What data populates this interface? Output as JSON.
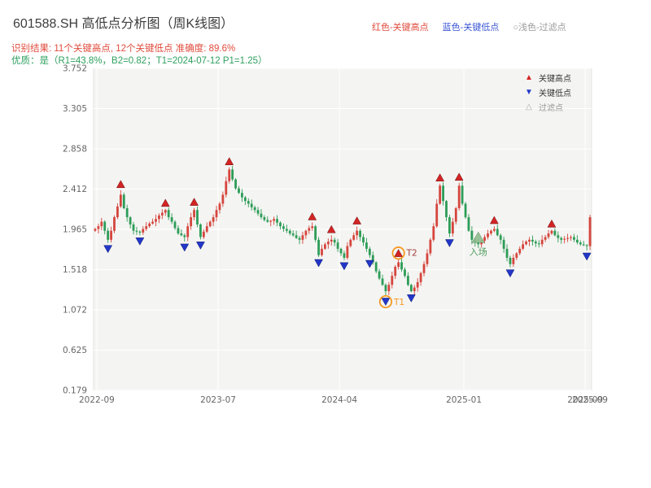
{
  "header": {
    "title": "601588.SH 高低点分析图（周K线图）",
    "result_line": "识别结果: 11个关键高点, 12个关键低点  准确度: 89.6%",
    "quality_line": "优质：是（R1=43.8%，B2=0.82；T1=2024-07-12 P1=1.25）",
    "legend": [
      {
        "label": "红色-关键高点",
        "color": "#e04b3c"
      },
      {
        "label": "蓝色-关键低点",
        "color": "#3a56d4"
      },
      {
        "label": "○浅色-过滤点",
        "color": "#9b9b9b"
      }
    ]
  },
  "chart_data": {
    "type": "candlestick",
    "title": "601588.SH 高低点分析图（周K线图）",
    "y_ticks": [
      "3.752",
      "3.305",
      "2.858",
      "2.412",
      "1.965",
      "1.518",
      "1.072",
      "0.625",
      "0.179"
    ],
    "axis": {
      "min": 0.179,
      "max": 3.752,
      "grid": true
    },
    "x_ticks": [
      {
        "label": "2022-09",
        "week": 1
      },
      {
        "label": "2023-07",
        "week": 39
      },
      {
        "label": "2024-04",
        "week": 77
      },
      {
        "label": "2025-01",
        "week": 116
      },
      {
        "label": "2025-09",
        "week": 154
      },
      {
        "label": "2025-09",
        "week": 155.5,
        "grid": false
      }
    ],
    "first_open": 1.95,
    "closes": [
      1.97,
      2.0,
      2.05,
      1.95,
      1.85,
      1.95,
      2.1,
      2.22,
      2.35,
      2.2,
      2.1,
      2.02,
      1.95,
      1.94,
      1.93,
      1.97,
      2.0,
      2.03,
      2.05,
      2.08,
      2.12,
      2.15,
      2.18,
      2.1,
      2.05,
      1.98,
      1.92,
      1.9,
      1.88,
      2.0,
      2.1,
      2.18,
      2.02,
      1.88,
      1.94,
      2.0,
      2.05,
      2.1,
      2.18,
      2.25,
      2.35,
      2.5,
      2.63,
      2.52,
      2.42,
      2.37,
      2.32,
      2.28,
      2.25,
      2.21,
      2.18,
      2.14,
      2.1,
      2.07,
      2.05,
      2.06,
      2.08,
      2.04,
      2.0,
      1.97,
      1.95,
      1.92,
      1.9,
      1.87,
      1.85,
      1.9,
      1.95,
      1.98,
      2.0,
      1.85,
      1.68,
      1.75,
      1.8,
      1.83,
      1.85,
      1.82,
      1.75,
      1.7,
      1.65,
      1.78,
      1.85,
      1.9,
      1.95,
      1.88,
      1.82,
      1.75,
      1.68,
      1.6,
      1.5,
      1.42,
      1.35,
      1.28,
      1.35,
      1.45,
      1.55,
      1.6,
      1.52,
      1.45,
      1.35,
      1.28,
      1.32,
      1.38,
      1.48,
      1.58,
      1.7,
      1.85,
      2.0,
      2.25,
      2.45,
      2.28,
      2.1,
      1.92,
      2.05,
      2.2,
      2.45,
      2.25,
      2.1,
      1.95,
      1.85,
      1.82,
      1.8,
      1.84,
      1.88,
      1.92,
      1.95,
      1.97,
      1.9,
      1.85,
      1.75,
      1.65,
      1.58,
      1.65,
      1.7,
      1.75,
      1.8,
      1.83,
      1.85,
      1.83,
      1.81,
      1.8,
      1.85,
      1.88,
      1.92,
      1.95,
      1.9,
      1.87,
      1.85,
      1.86,
      1.87,
      1.88,
      1.85,
      1.82,
      1.8,
      1.79,
      1.78,
      2.1
    ],
    "key_high_weeks": [
      8,
      22,
      31,
      42,
      68,
      74,
      82,
      108,
      114,
      125,
      143
    ],
    "key_low_weeks": [
      4,
      14,
      28,
      33,
      70,
      78,
      86,
      91,
      99,
      111,
      130,
      154
    ],
    "annotations": {
      "t1": {
        "week": 91,
        "label": "T1"
      },
      "t2": {
        "week": 95,
        "label": "T2"
      },
      "entry": {
        "week": 120,
        "label": "入场"
      }
    },
    "legend": [
      {
        "symbol": "▲",
        "label": "关键高点"
      },
      {
        "symbol": "▼",
        "label": "关键低点"
      },
      {
        "symbol": "△",
        "label": "过滤点"
      }
    ],
    "colors": {
      "up": "#d5453d",
      "down": "#2d9c57",
      "up_marker": "#d32424",
      "down_marker": "#2336c9",
      "filter_marker": "#aaaaaa",
      "entry_fill": "#8fbc8f",
      "entry_text": "#4f9d5d",
      "ring": "#f59a23",
      "t1_text": "#f59a23",
      "t2_text": "#a23b3b",
      "plot_bg": "#f4f4f2",
      "grid": "#ffffff",
      "tick_text": "#666666",
      "title_text": "#3d3d3d",
      "result_text": "#e04b3c",
      "quality_text": "#2fa05f",
      "legend_text": "#333333",
      "filter_text": "#999999"
    }
  }
}
